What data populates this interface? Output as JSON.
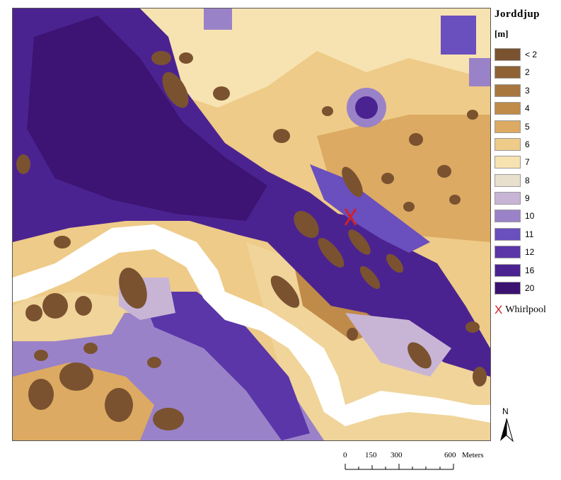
{
  "legend": {
    "title": "Jorddjup",
    "unit": "[m]",
    "classes": [
      {
        "label": "< 2",
        "color": "#7a5230"
      },
      {
        "label": "2",
        "color": "#8f6235"
      },
      {
        "label": "3",
        "color": "#a8773f"
      },
      {
        "label": "4",
        "color": "#c08a48"
      },
      {
        "label": "5",
        "color": "#dcaa62"
      },
      {
        "label": "6",
        "color": "#eecb88"
      },
      {
        "label": "7",
        "color": "#f7e3b1"
      },
      {
        "label": "8",
        "color": "#e8e0cd"
      },
      {
        "label": "9",
        "color": "#c8b5d6"
      },
      {
        "label": "10",
        "color": "#9a82c8"
      },
      {
        "label": "11",
        "color": "#6a4fbe"
      },
      {
        "label": "12",
        "color": "#5a36a8"
      },
      {
        "label": "16",
        "color": "#4b2391"
      },
      {
        "label": "20",
        "color": "#3c1270"
      }
    ],
    "poi": {
      "label": "Whirlpool",
      "symbol": "X",
      "color": "#d0212a"
    }
  },
  "north": {
    "label": "N"
  },
  "scale": {
    "ticks": [
      "0",
      "150",
      "300",
      "600"
    ],
    "unit": "Meters"
  },
  "water_color": "#ffffff"
}
